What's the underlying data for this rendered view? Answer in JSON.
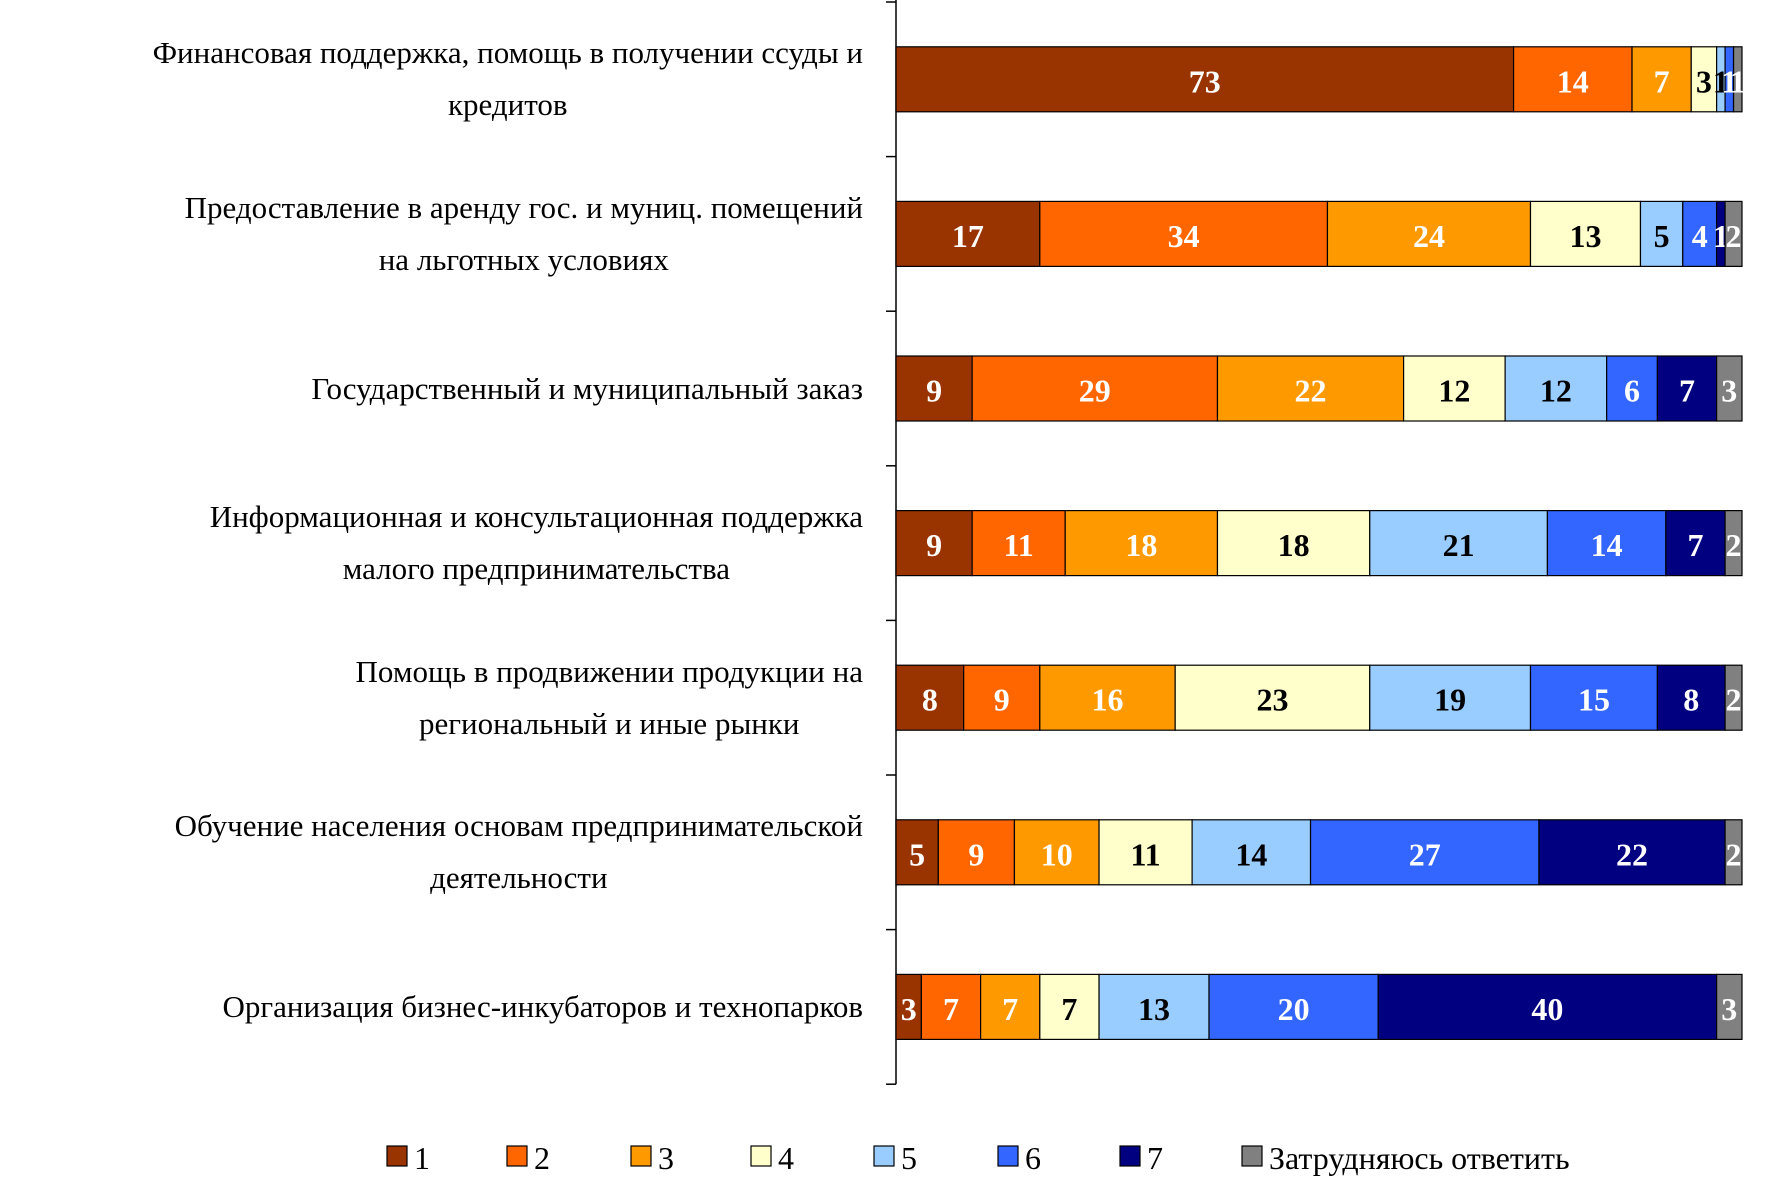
{
  "chart_data": {
    "type": "stacked-barh",
    "categories": [
      "Финансовая поддержка, помощь в получении ссуды и\nкредитов",
      "Предоставление в аренду гос. и муниц. помещений\nна льготных условиях",
      "Государственный и муниципальный заказ",
      "Информационная и консультационная поддержка\nмалого предпринимательства",
      "Помощь в продвижении продукции на\nрегиональный и иные рынки",
      "Обучение населения основам предпринимательской\nдеятельности",
      "Организация бизнес-инкубаторов и технопарков"
    ],
    "series": [
      {
        "name": "1",
        "color": "#993300",
        "values": [
          73,
          17,
          9,
          9,
          8,
          5,
          3
        ]
      },
      {
        "name": "2",
        "color": "#ff6600",
        "values": [
          14,
          34,
          29,
          11,
          9,
          9,
          7
        ]
      },
      {
        "name": "3",
        "color": "#ff9900",
        "values": [
          7,
          24,
          22,
          18,
          16,
          10,
          7
        ]
      },
      {
        "name": "4",
        "color": "#ffffcc",
        "values": [
          3,
          13,
          12,
          18,
          23,
          11,
          7
        ]
      },
      {
        "name": "5",
        "color": "#99ccff",
        "values": [
          1,
          5,
          12,
          21,
          19,
          14,
          13
        ]
      },
      {
        "name": "6",
        "color": "#3366ff",
        "values": [
          1,
          4,
          6,
          14,
          15,
          27,
          20
        ]
      },
      {
        "name": "7",
        "color": "#000080",
        "values": [
          null,
          1,
          7,
          7,
          8,
          22,
          40
        ]
      },
      {
        "name": "Затрудняюсь ответить",
        "color": "#808080",
        "values": [
          1,
          2,
          3,
          2,
          2,
          2,
          3
        ]
      }
    ],
    "xlim": [
      0,
      100
    ]
  }
}
